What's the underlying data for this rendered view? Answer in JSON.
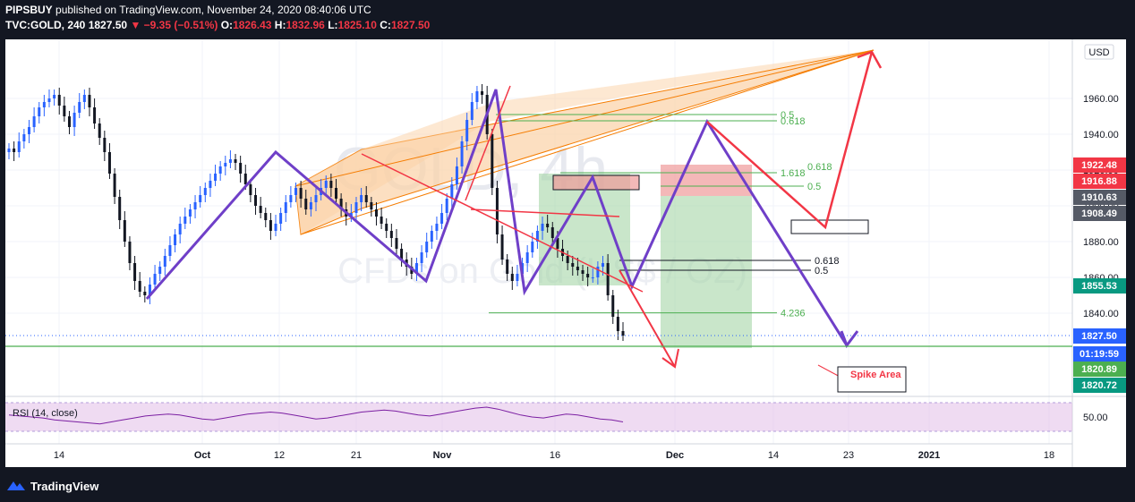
{
  "header": {
    "publisher": "PIPSBUY",
    "published_text": "published on TradingView.com, November 24, 2020 08:40:06 UTC",
    "symbol": "TVC:GOLD, 240",
    "last": "1827.50",
    "change": "▼ −9.35 (−0.51%)",
    "open_label": "O:",
    "open": "1826.43",
    "high_label": "H:",
    "high": "1832.96",
    "low_label": "L:",
    "low": "1825.10",
    "close_label": "C:",
    "close": "1827.50"
  },
  "watermark": {
    "symbol": "GOLD, 4h",
    "desc": "CFDs on Gold (US$ / OZ)"
  },
  "currency_badge": "USD",
  "footer": {
    "brand": "TradingView"
  },
  "colors": {
    "up": "#2962ff",
    "down": "#131722",
    "purple": "#6f3fc8",
    "red_line": "#f23645",
    "orange": "#f57c00",
    "green_fill": "#66bb6a",
    "red_fill": "#ef5350",
    "rsi": "#7b1fa2"
  },
  "chart_data": {
    "type": "candlestick",
    "ylim": [
      1800,
      1990
    ],
    "y_ticks": [
      "1960.00",
      "1940.00",
      "1920.00",
      "1900.00",
      "1880.00",
      "1860.00",
      "1840.00"
    ],
    "x_ticks": [
      "14",
      "Oct",
      "12",
      "21",
      "Nov",
      "16",
      "Dec",
      "14",
      "23",
      "2021",
      "18"
    ],
    "close_series": [
      1932,
      1930,
      1936,
      1940,
      1944,
      1950,
      1955,
      1958,
      1960,
      1962,
      1956,
      1950,
      1944,
      1952,
      1958,
      1962,
      1955,
      1946,
      1938,
      1930,
      1918,
      1905,
      1892,
      1880,
      1868,
      1858,
      1852,
      1850,
      1856,
      1862,
      1866,
      1872,
      1878,
      1884,
      1890,
      1894,
      1898,
      1902,
      1906,
      1910,
      1914,
      1918,
      1922,
      1924,
      1926,
      1924,
      1918,
      1912,
      1906,
      1900,
      1896,
      1892,
      1886,
      1890,
      1896,
      1902,
      1906,
      1910,
      1904,
      1898,
      1902,
      1906,
      1910,
      1914,
      1910,
      1904,
      1898,
      1894,
      1896,
      1902,
      1906,
      1902,
      1898,
      1894,
      1890,
      1886,
      1882,
      1876,
      1870,
      1866,
      1862,
      1868,
      1874,
      1880,
      1886,
      1890,
      1896,
      1904,
      1912,
      1922,
      1936,
      1948,
      1958,
      1964,
      1962,
      1940,
      1910,
      1884,
      1870,
      1862,
      1858,
      1862,
      1868,
      1874,
      1880,
      1886,
      1890,
      1888,
      1882,
      1876,
      1872,
      1868,
      1866,
      1864,
      1862,
      1860,
      1860,
      1866,
      1868,
      1850,
      1838,
      1830,
      1827.5
    ],
    "annotations": {
      "fib_upper": [
        {
          "label": "0.5",
          "price": 1951
        },
        {
          "label": "0.618",
          "price": 1947.5
        }
      ],
      "fib_mid": [
        {
          "label": "1.618",
          "price": 1918.5
        },
        {
          "label": "0.618",
          "price": 1919.5
        },
        {
          "label": "0.5",
          "price": 1911
        }
      ],
      "fib_lower": [
        {
          "label": "0.618",
          "price": 1869.5
        },
        {
          "label": "0.5",
          "price": 1864
        }
      ],
      "fib_ext": {
        "label": "4.236",
        "price": 1840.2
      },
      "spike_label": "Spike Area"
    },
    "price_labels": [
      {
        "value": "1922.48",
        "bg": "#f23645"
      },
      {
        "value": "1916.88",
        "bg": "#f23645"
      },
      {
        "value": "1910.63",
        "bg": "#555a66"
      },
      {
        "value": "1908.49",
        "bg": "#555a66"
      },
      {
        "value": "1855.53",
        "bg": "#089981"
      },
      {
        "value": "1827.50",
        "bg": "#2962ff"
      },
      {
        "value": "01:19:59",
        "bg": "#2962ff"
      },
      {
        "value": "1820.89",
        "bg": "#4caf50"
      },
      {
        "value": "1820.72",
        "bg": "#089981"
      }
    ],
    "rsi": {
      "label": "RSI (14, close)",
      "tick": "50.00",
      "values": [
        52,
        51,
        50,
        49,
        47,
        46,
        45,
        44,
        43,
        45,
        47,
        49,
        51,
        52,
        53,
        52,
        50,
        48,
        47,
        49,
        51,
        53,
        54,
        55,
        54,
        52,
        50,
        48,
        49,
        51,
        53,
        55,
        56,
        57,
        56,
        54,
        52,
        51,
        53,
        55,
        57,
        59,
        60,
        58,
        55,
        52,
        50,
        49,
        51,
        53,
        52,
        50,
        48,
        47,
        45
      ]
    }
  }
}
